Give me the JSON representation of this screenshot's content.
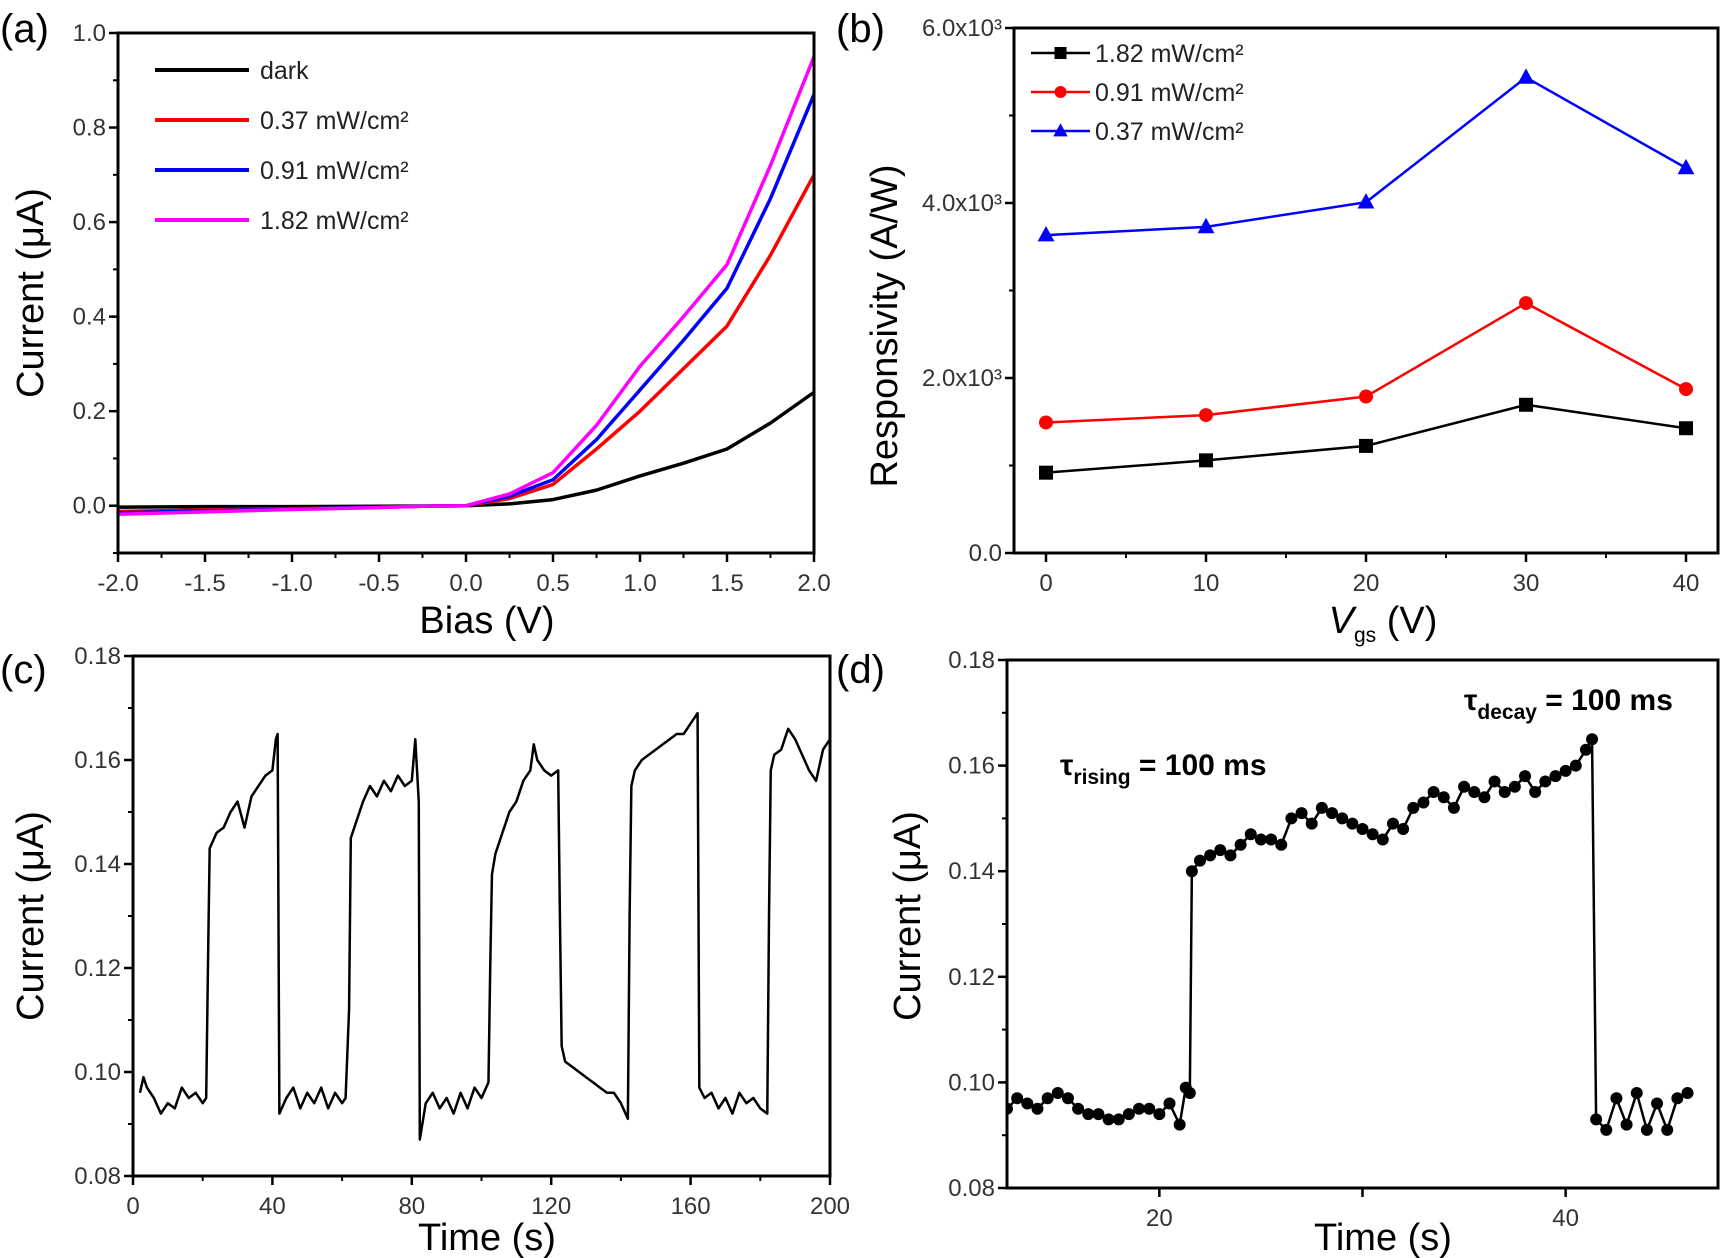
{
  "panels": {
    "a": {
      "label": "(a)",
      "xlabel": "Bias (V)",
      "ylabel": "Current (μA)"
    },
    "b": {
      "label": "(b)",
      "xlabel_main": "V",
      "xlabel_sub": "gs",
      "xlabel_rest": " (V)",
      "ylabel": "Responsivity (A/W)"
    },
    "c": {
      "label": "(c)",
      "xlabel": "Time (s)",
      "ylabel": "Current (μA)"
    },
    "d": {
      "label": "(d)",
      "xlabel": "Time (s)",
      "ylabel": "Current (μA)",
      "annotations": [
        {
          "main": "τ",
          "sub": "rising",
          "rest": " = 100 ms"
        },
        {
          "main": "τ",
          "sub": "decay",
          "rest": " = 100 ms"
        }
      ]
    }
  },
  "chart_data": [
    {
      "panel": "a",
      "type": "line",
      "xlabel": "Bias (V)",
      "ylabel": "Current (μA)",
      "xlim": [
        -2.0,
        2.0
      ],
      "ylim": [
        -0.1,
        1.0
      ],
      "xticks": [
        -2.0,
        -1.5,
        -1.0,
        -0.5,
        0.0,
        0.5,
        1.0,
        1.5,
        2.0
      ],
      "xtick_labels": [
        "-2.0",
        "-1.5",
        "-1.0",
        "-0.5",
        "0.0",
        "0.5",
        "1.0",
        "1.5",
        "2.0"
      ],
      "xminor": [
        -1.75,
        -1.25,
        -0.75,
        -0.25,
        0.25,
        0.75,
        1.25,
        1.75
      ],
      "yticks": [
        0.0,
        0.2,
        0.4,
        0.6,
        0.8,
        1.0
      ],
      "ytick_labels": [
        "0.0",
        "0.2",
        "0.4",
        "0.6",
        "0.8",
        "1.0"
      ],
      "yminor": [
        -0.1,
        0.1,
        0.3,
        0.5,
        0.7,
        0.9
      ],
      "legend": "top-left",
      "x": [
        -2.0,
        -1.5,
        -1.0,
        -0.5,
        -0.25,
        0.0,
        0.25,
        0.5,
        0.75,
        1.0,
        1.25,
        1.5,
        1.75,
        2.0
      ],
      "series": [
        {
          "name": "dark",
          "color": "#000000",
          "values": [
            -0.003,
            -0.002,
            -0.002,
            -0.001,
            -0.0005,
            0,
            0.004,
            0.013,
            0.033,
            0.063,
            0.09,
            0.12,
            0.175,
            0.24
          ]
        },
        {
          "name": "0.37 mW/cm²",
          "color": "#ff0000",
          "values": [
            -0.012,
            -0.009,
            -0.006,
            -0.003,
            -0.001,
            0,
            0.015,
            0.045,
            0.12,
            0.2,
            0.29,
            0.38,
            0.53,
            0.7
          ]
        },
        {
          "name": "0.91 mW/cm²",
          "color": "#0000ff",
          "values": [
            -0.015,
            -0.011,
            -0.007,
            -0.003,
            -0.001,
            0,
            0.02,
            0.055,
            0.14,
            0.245,
            0.35,
            0.46,
            0.65,
            0.87
          ]
        },
        {
          "name": "1.82 mW/cm²",
          "color": "#ff00ff",
          "values": [
            -0.018,
            -0.013,
            -0.008,
            -0.004,
            -0.001,
            0,
            0.025,
            0.07,
            0.17,
            0.295,
            0.4,
            0.51,
            0.72,
            0.95
          ]
        }
      ]
    },
    {
      "panel": "b",
      "type": "line",
      "xlabel": "Vgs (V)",
      "ylabel": "Responsivity (A/W)",
      "xlim": [
        -2,
        42
      ],
      "ylim": [
        0,
        6000
      ],
      "xticks": [
        0,
        10,
        20,
        30,
        40
      ],
      "xtick_labels": [
        "0",
        "10",
        "20",
        "30",
        "40"
      ],
      "xminor": [
        5,
        15,
        25,
        35
      ],
      "yticks": [
        0,
        2000,
        4000,
        6000
      ],
      "ytick_labels": [
        "0.0",
        "2.0x10³",
        "4.0x10³",
        "6.0x10³"
      ],
      "yminor": [
        1000,
        3000,
        5000
      ],
      "legend": "top-left",
      "x": [
        0,
        10,
        20,
        30,
        40
      ],
      "series": [
        {
          "name": "1.82 mW/cm²",
          "color": "#000000",
          "marker": "square",
          "values": [
            918,
            1059,
            1224,
            1694,
            1426
          ]
        },
        {
          "name": "0.91 mW/cm²",
          "color": "#ff0000",
          "marker": "circle",
          "values": [
            1492,
            1576,
            1788,
            2856,
            1873
          ]
        },
        {
          "name": "0.37 mW/cm²",
          "color": "#0000ff",
          "marker": "triangle",
          "values": [
            3633,
            3727,
            4009,
            5435,
            4400
          ]
        }
      ]
    },
    {
      "panel": "c",
      "type": "line",
      "xlabel": "Time (s)",
      "ylabel": "Current (μA)",
      "xlim": [
        0,
        200
      ],
      "ylim": [
        0.08,
        0.18
      ],
      "xticks": [
        0,
        40,
        80,
        120,
        160,
        200
      ],
      "xtick_labels": [
        "0",
        "40",
        "80",
        "120",
        "160",
        "200"
      ],
      "xminor": [
        20,
        60,
        100,
        140,
        180
      ],
      "yticks": [
        0.08,
        0.1,
        0.12,
        0.14,
        0.16,
        0.18
      ],
      "ytick_labels": [
        "0.08",
        "0.10",
        "0.12",
        "0.14",
        "0.16",
        "0.18"
      ],
      "yminor": [
        0.09,
        0.11,
        0.13,
        0.15,
        0.17
      ],
      "color": "#000000",
      "points": [
        [
          2,
          0.096
        ],
        [
          3,
          0.099
        ],
        [
          4,
          0.097
        ],
        [
          6,
          0.095
        ],
        [
          8,
          0.092
        ],
        [
          10,
          0.094
        ],
        [
          12,
          0.093
        ],
        [
          14,
          0.097
        ],
        [
          16,
          0.095
        ],
        [
          18,
          0.096
        ],
        [
          20,
          0.094
        ],
        [
          21,
          0.095
        ],
        [
          21.5,
          0.12
        ],
        [
          22,
          0.143
        ],
        [
          24,
          0.146
        ],
        [
          26,
          0.147
        ],
        [
          28,
          0.15
        ],
        [
          30,
          0.152
        ],
        [
          32,
          0.147
        ],
        [
          34,
          0.153
        ],
        [
          36,
          0.155
        ],
        [
          38,
          0.157
        ],
        [
          40,
          0.158
        ],
        [
          41,
          0.164
        ],
        [
          41.5,
          0.165
        ],
        [
          42,
          0.092
        ],
        [
          44,
          0.095
        ],
        [
          46,
          0.097
        ],
        [
          48,
          0.093
        ],
        [
          50,
          0.096
        ],
        [
          52,
          0.094
        ],
        [
          54,
          0.097
        ],
        [
          56,
          0.093
        ],
        [
          58,
          0.096
        ],
        [
          60,
          0.094
        ],
        [
          61,
          0.095
        ],
        [
          62,
          0.112
        ],
        [
          62.5,
          0.145
        ],
        [
          64,
          0.148
        ],
        [
          66,
          0.152
        ],
        [
          68,
          0.155
        ],
        [
          70,
          0.153
        ],
        [
          72,
          0.156
        ],
        [
          74,
          0.154
        ],
        [
          76,
          0.157
        ],
        [
          78,
          0.155
        ],
        [
          80,
          0.156
        ],
        [
          81,
          0.164
        ],
        [
          82,
          0.152
        ],
        [
          82.3,
          0.087
        ],
        [
          84,
          0.094
        ],
        [
          86,
          0.096
        ],
        [
          88,
          0.093
        ],
        [
          90,
          0.095
        ],
        [
          92,
          0.092
        ],
        [
          94,
          0.096
        ],
        [
          96,
          0.093
        ],
        [
          98,
          0.097
        ],
        [
          100,
          0.095
        ],
        [
          102,
          0.098
        ],
        [
          102.5,
          0.12
        ],
        [
          103,
          0.138
        ],
        [
          104,
          0.142
        ],
        [
          106,
          0.146
        ],
        [
          108,
          0.15
        ],
        [
          110,
          0.152
        ],
        [
          112,
          0.156
        ],
        [
          114,
          0.158
        ],
        [
          115,
          0.163
        ],
        [
          116,
          0.16
        ],
        [
          118,
          0.158
        ],
        [
          120,
          0.157
        ],
        [
          122,
          0.158
        ],
        [
          122.5,
          0.13
        ],
        [
          123,
          0.105
        ],
        [
          124,
          0.102
        ],
        [
          126,
          0.101
        ],
        [
          128,
          0.1
        ],
        [
          130,
          0.099
        ],
        [
          132,
          0.098
        ],
        [
          134,
          0.097
        ],
        [
          136,
          0.096
        ],
        [
          138,
          0.096
        ],
        [
          140,
          0.094
        ],
        [
          142,
          0.091
        ],
        [
          142.5,
          0.13
        ],
        [
          143,
          0.155
        ],
        [
          144,
          0.158
        ],
        [
          146,
          0.16
        ],
        [
          148,
          0.161
        ],
        [
          150,
          0.162
        ],
        [
          152,
          0.163
        ],
        [
          154,
          0.164
        ],
        [
          156,
          0.165
        ],
        [
          158,
          0.165
        ],
        [
          160,
          0.167
        ],
        [
          162,
          0.169
        ],
        [
          162.5,
          0.097
        ],
        [
          164,
          0.095
        ],
        [
          166,
          0.096
        ],
        [
          168,
          0.093
        ],
        [
          170,
          0.095
        ],
        [
          172,
          0.092
        ],
        [
          174,
          0.096
        ],
        [
          176,
          0.094
        ],
        [
          178,
          0.095
        ],
        [
          180,
          0.093
        ],
        [
          182,
          0.092
        ],
        [
          182.5,
          0.13
        ],
        [
          183,
          0.158
        ],
        [
          184,
          0.161
        ],
        [
          186,
          0.162
        ],
        [
          188,
          0.166
        ],
        [
          190,
          0.164
        ],
        [
          192,
          0.161
        ],
        [
          194,
          0.158
        ],
        [
          196,
          0.156
        ],
        [
          198,
          0.162
        ],
        [
          200,
          0.164
        ]
      ]
    },
    {
      "panel": "d",
      "type": "scatter",
      "xlabel": "Time (s)",
      "ylabel": "Current (μA)",
      "xlim": [
        12.5,
        47.5
      ],
      "ylim": [
        0.08,
        0.18
      ],
      "xticks": [
        20,
        30,
        40
      ],
      "xtick_labels": [
        "20",
        "",
        "40"
      ],
      "xminor": [],
      "yticks": [
        0.08,
        0.1,
        0.12,
        0.14,
        0.16,
        0.18
      ],
      "ytick_labels": [
        "0.08",
        "0.10",
        "0.12",
        "0.14",
        "0.16",
        "0.18"
      ],
      "yminor": [
        0.09,
        0.11,
        0.13,
        0.15,
        0.17
      ],
      "color": "#000000",
      "marker": "circle",
      "connected": true,
      "annotations": [
        "τrising = 100 ms",
        "τdecay = 100 ms"
      ],
      "points": [
        [
          12.5,
          0.095
        ],
        [
          13,
          0.097
        ],
        [
          13.5,
          0.096
        ],
        [
          14,
          0.095
        ],
        [
          14.5,
          0.097
        ],
        [
          15,
          0.098
        ],
        [
          15.5,
          0.097
        ],
        [
          16,
          0.095
        ],
        [
          16.5,
          0.094
        ],
        [
          17,
          0.094
        ],
        [
          17.5,
          0.093
        ],
        [
          18,
          0.093
        ],
        [
          18.5,
          0.094
        ],
        [
          19,
          0.095
        ],
        [
          19.5,
          0.095
        ],
        [
          20,
          0.094
        ],
        [
          20.5,
          0.096
        ],
        [
          21,
          0.092
        ],
        [
          21.3,
          0.099
        ],
        [
          21.5,
          0.098
        ],
        [
          21.6,
          0.14
        ],
        [
          22,
          0.142
        ],
        [
          22.5,
          0.143
        ],
        [
          23,
          0.144
        ],
        [
          23.5,
          0.143
        ],
        [
          24,
          0.145
        ],
        [
          24.5,
          0.147
        ],
        [
          25,
          0.146
        ],
        [
          25.5,
          0.146
        ],
        [
          26,
          0.145
        ],
        [
          26.5,
          0.15
        ],
        [
          27,
          0.151
        ],
        [
          27.5,
          0.149
        ],
        [
          28,
          0.152
        ],
        [
          28.5,
          0.151
        ],
        [
          29,
          0.15
        ],
        [
          29.5,
          0.149
        ],
        [
          30,
          0.148
        ],
        [
          30.5,
          0.147
        ],
        [
          31,
          0.146
        ],
        [
          31.5,
          0.149
        ],
        [
          32,
          0.148
        ],
        [
          32.5,
          0.152
        ],
        [
          33,
          0.153
        ],
        [
          33.5,
          0.155
        ],
        [
          34,
          0.154
        ],
        [
          34.5,
          0.152
        ],
        [
          35,
          0.156
        ],
        [
          35.5,
          0.155
        ],
        [
          36,
          0.154
        ],
        [
          36.5,
          0.157
        ],
        [
          37,
          0.155
        ],
        [
          37.5,
          0.156
        ],
        [
          38,
          0.158
        ],
        [
          38.5,
          0.155
        ],
        [
          39,
          0.157
        ],
        [
          39.5,
          0.158
        ],
        [
          40,
          0.159
        ],
        [
          40.5,
          0.16
        ],
        [
          41,
          0.163
        ],
        [
          41.3,
          0.165
        ],
        [
          41.5,
          0.093
        ],
        [
          42,
          0.091
        ],
        [
          42.5,
          0.097
        ],
        [
          43,
          0.092
        ],
        [
          43.5,
          0.098
        ],
        [
          44,
          0.091
        ],
        [
          44.5,
          0.096
        ],
        [
          45,
          0.091
        ],
        [
          45.5,
          0.097
        ],
        [
          46,
          0.098
        ]
      ]
    }
  ]
}
